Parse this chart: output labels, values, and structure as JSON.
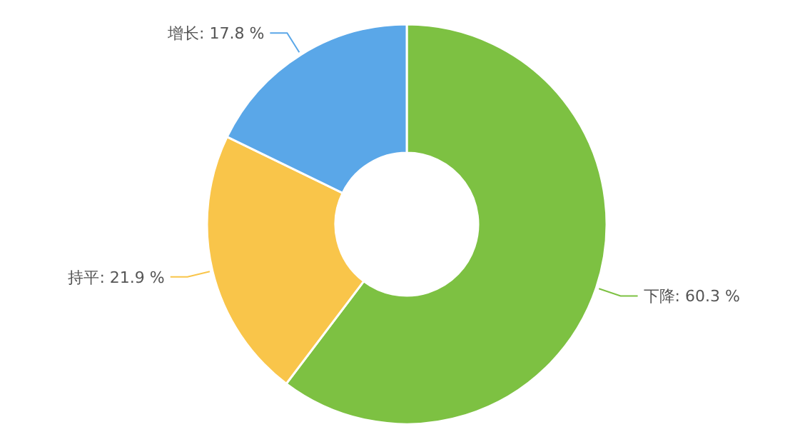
{
  "chart_data": {
    "type": "donut",
    "categories": [
      "下降",
      "持平",
      "增长"
    ],
    "values": [
      60.3,
      21.9,
      17.8
    ],
    "value_labels": [
      "60.3 %",
      "21.9 %",
      "17.8 %"
    ],
    "colors": [
      "#7dc142",
      "#f9c54a",
      "#5aa7e8"
    ]
  }
}
